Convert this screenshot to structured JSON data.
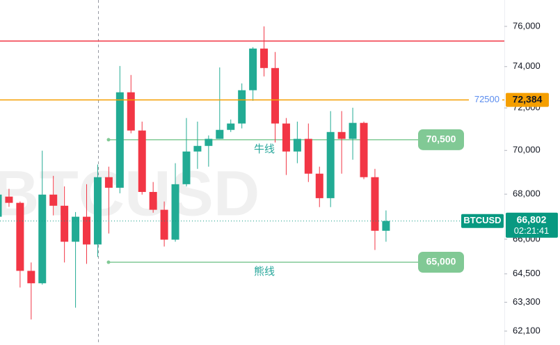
{
  "chart_data": {
    "type": "candlestick",
    "watermark": "BTCUSD",
    "log_scale": true,
    "grid": false,
    "ylim": [
      61530,
      77340
    ],
    "yticks": [
      {
        "value": 76000,
        "label": "76,000"
      },
      {
        "value": 74000,
        "label": "74,000"
      },
      {
        "value": 72000,
        "label": "72,000"
      },
      {
        "value": 70000,
        "label": "70,000"
      },
      {
        "value": 68000,
        "label": "68,000"
      },
      {
        "value": 66000,
        "label": "66,000"
      },
      {
        "value": 64500,
        "label": "64,500"
      },
      {
        "value": 63300,
        "label": "63,300"
      },
      {
        "value": 62100,
        "label": "62,100"
      }
    ],
    "up_color": "#22ab94",
    "down_color": "#f23645",
    "open": [
      66990,
      67890,
      67610,
      64630,
      64100,
      67980,
      67480,
      65890,
      66990,
      65770,
      68770,
      68290,
      72750,
      70930,
      68100,
      67300,
      65980,
      68450,
      69950,
      70210,
      70540,
      70960,
      71260,
      72850,
      74890,
      73930,
      71260,
      69950,
      70540,
      68930,
      67820,
      70860,
      70540,
      71290,
      68770,
      66370
    ],
    "high": [
      68140,
      68240,
      67670,
      64990,
      69990,
      68830,
      68350,
      67200,
      68450,
      69350,
      69250,
      74030,
      73590,
      71350,
      68550,
      67670,
      69410,
      71520,
      71350,
      70700,
      73960,
      71450,
      73180,
      74960,
      76000,
      74720,
      71520,
      71350,
      71260,
      69250,
      71850,
      71850,
      72010,
      71350,
      69150,
      67270
    ],
    "low": [
      66800,
      67430,
      63920,
      62580,
      64040,
      67050,
      64990,
      63070,
      64930,
      65230,
      66250,
      68040,
      70800,
      67980,
      67170,
      65680,
      65890,
      68350,
      69150,
      69250,
      70540,
      70860,
      71030,
      72340,
      73520,
      70370,
      68870,
      69410,
      68550,
      67420,
      67420,
      68930,
      69570,
      68680,
      65530,
      65890
    ],
    "close": [
      67980,
      67610,
      64630,
      64100,
      67980,
      67480,
      65890,
      66990,
      65770,
      68770,
      68290,
      72750,
      70930,
      68100,
      67300,
      65980,
      68450,
      69950,
      70210,
      70540,
      70960,
      71260,
      72850,
      74890,
      73930,
      71260,
      69950,
      70540,
      68930,
      67820,
      70860,
      70540,
      71290,
      68770,
      66370,
      66802
    ],
    "resistance_line": {
      "value": 75265,
      "color": "#f23645"
    },
    "alert_line": {
      "value": 72384,
      "value_label": "72,384",
      "alert_text": "72500",
      "color": "#f59f00"
    },
    "target_color": "#81c995",
    "targets": [
      {
        "name": "牛线",
        "value": 70500,
        "value_label": "70,500"
      },
      {
        "name": "熊线",
        "value": 65000,
        "value_label": "65,000"
      }
    ],
    "last_price": {
      "symbol": "BTCUSD",
      "value": 66802,
      "value_label": "66,802",
      "countdown": "02:21:41",
      "color": "#089981"
    }
  }
}
